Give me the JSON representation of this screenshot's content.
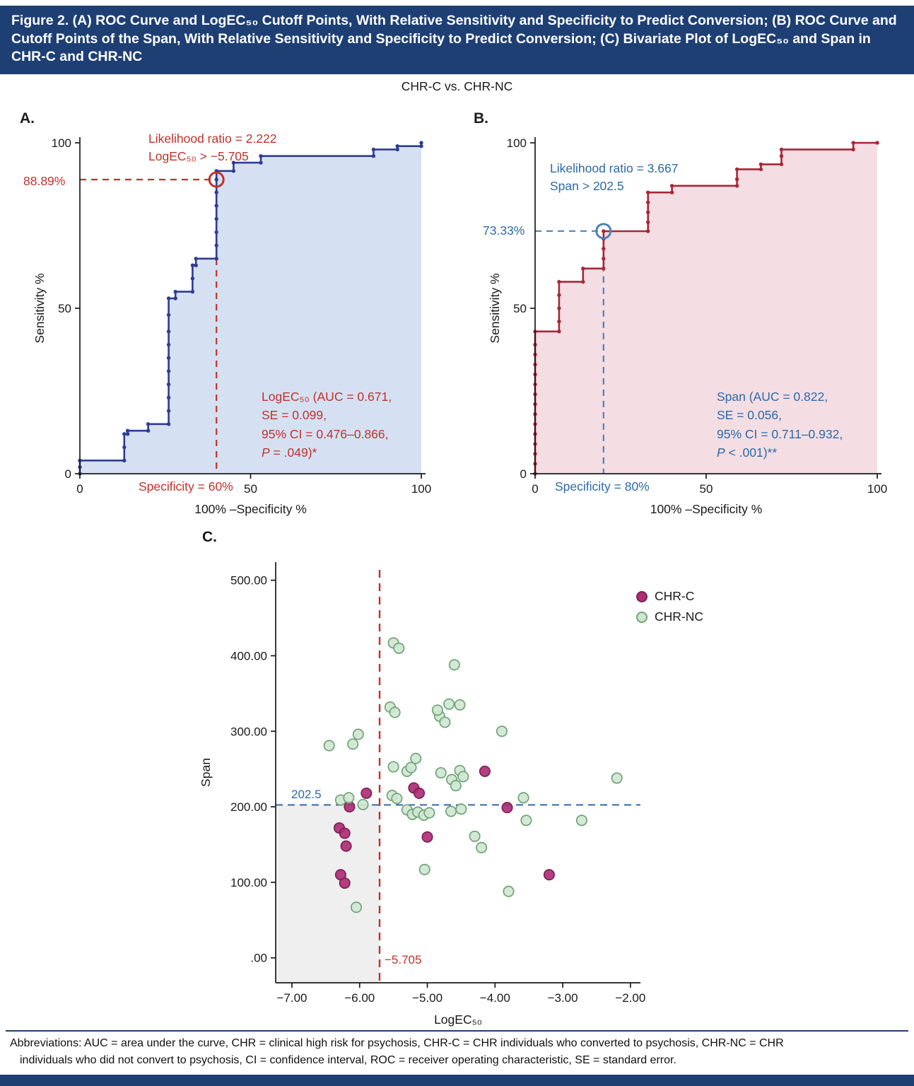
{
  "colors": {
    "header_bar": "#1e3f74",
    "red": "#c2312b",
    "blue": "#2b6aa8"
  },
  "header": {
    "title": "Figure 2. (A) ROC Curve and LogEC₅₀ Cutoff Points, With Relative Sensitivity and Specificity to Predict Conversion; (B) ROC Curve and Cutoff Points of the Span, With Relative Sensitivity and Specificity to Predict Conversion; (C) Bivariate Plot of LogEC₅₀ and Span in CHR-C and CHR-NC"
  },
  "subtitle": "CHR-C vs. CHR-NC",
  "panels": {
    "a": {
      "label": "A.",
      "annotations": {
        "likelihood": [
          "Likelihood ratio = 2.222",
          "LogEC₅₀ > −5.705"
        ],
        "sensitivity_label": "88.89%",
        "specificity_label": "Specificity = 60%",
        "stats": [
          "LogEC₅₀ (AUC = 0.671,",
          "SE = 0.099,",
          "95% CI = 0.476–0.866,",
          "P = .049)*"
        ]
      }
    },
    "b": {
      "label": "B.",
      "annotations": {
        "likelihood": [
          "Likelihood ratio = 3.667",
          "Span > 202.5"
        ],
        "sensitivity_label": "73.33%",
        "specificity_label": "Specificity = 80%",
        "stats": [
          "Span (AUC = 0.822,",
          "SE = 0.056,",
          "95% CI = 0.711–0.932,",
          "P < .001)**"
        ]
      }
    },
    "c": {
      "label": "C."
    }
  },
  "footer": {
    "abbreviations": [
      "Abbreviations: AUC = area under the curve, CHR = clinical high risk for psychosis, CHR-C = CHR individuals who converted to psychosis, CHR-NC = CHR",
      "individuals who did not convert to psychosis, CI = confidence interval, ROC = receiver operating characteristic, SE = standard error."
    ]
  },
  "chart_data": [
    {
      "id": "rocA",
      "type": "line",
      "subtype": "roc-step",
      "title": "CHR-C vs. CHR-NC",
      "xlabel": "100% –Specificity %",
      "ylabel": "Sensitivity %",
      "xlim": [
        0,
        100
      ],
      "ylim": [
        0,
        100
      ],
      "xticks": [
        0,
        50,
        100
      ],
      "yticks": [
        0,
        50,
        100
      ],
      "curve_color": "#2d3c94",
      "fill_color": "#d5e1f2",
      "cutoff": {
        "x": 40,
        "sensitivity": 88.89,
        "specificity": 60,
        "likelihood_ratio": 2.222,
        "threshold": "LogEC₅₀ > −5.705",
        "circle_color": "#c2312b",
        "dash_color": "#c2312b"
      },
      "auc": 0.671,
      "se": 0.099,
      "ci": "0.476–0.866",
      "p": ".049",
      "points": [
        [
          0,
          0
        ],
        [
          0,
          2
        ],
        [
          0,
          4
        ],
        [
          13,
          4
        ],
        [
          13,
          8
        ],
        [
          13,
          12
        ],
        [
          14,
          12
        ],
        [
          14,
          13
        ],
        [
          20,
          13
        ],
        [
          20,
          15
        ],
        [
          26,
          15
        ],
        [
          26,
          19
        ],
        [
          26,
          23
        ],
        [
          26,
          27
        ],
        [
          26,
          31
        ],
        [
          26,
          35
        ],
        [
          26,
          39
        ],
        [
          26,
          43
        ],
        [
          26,
          48
        ],
        [
          26,
          53
        ],
        [
          28,
          53
        ],
        [
          28,
          55
        ],
        [
          33,
          55
        ],
        [
          33,
          59
        ],
        [
          33,
          63
        ],
        [
          34,
          63
        ],
        [
          34,
          65
        ],
        [
          40,
          65
        ],
        [
          40,
          69
        ],
        [
          40,
          73
        ],
        [
          40,
          77
        ],
        [
          40,
          81
        ],
        [
          40,
          85
        ],
        [
          40,
          88.9
        ],
        [
          40,
          91.5
        ],
        [
          45,
          91.5
        ],
        [
          45,
          94
        ],
        [
          53,
          94
        ],
        [
          53,
          96
        ],
        [
          86,
          96
        ],
        [
          86,
          98
        ],
        [
          93,
          98
        ],
        [
          93,
          99
        ],
        [
          100,
          99
        ],
        [
          100,
          100
        ]
      ]
    },
    {
      "id": "rocB",
      "type": "line",
      "subtype": "roc-step",
      "title": "CHR-C vs. CHR-NC",
      "xlabel": "100% –Specificity %",
      "ylabel": "Sensitivity %",
      "xlim": [
        0,
        100
      ],
      "ylim": [
        0,
        100
      ],
      "xticks": [
        0,
        50,
        100
      ],
      "yticks": [
        0,
        50,
        100
      ],
      "curve_color": "#a72638",
      "fill_color": "#f4dde3",
      "cutoff": {
        "x": 20,
        "sensitivity": 73.33,
        "specificity": 80,
        "likelihood_ratio": 3.667,
        "threshold": "Span > 202.5",
        "circle_color": "#4d83b8",
        "dash_color": "#4d83b8"
      },
      "auc": 0.822,
      "se": 0.056,
      "ci": "0.711–0.932",
      "p": "<.001",
      "points": [
        [
          0,
          0
        ],
        [
          0,
          3
        ],
        [
          0,
          6
        ],
        [
          0,
          9
        ],
        [
          0,
          12
        ],
        [
          0,
          15
        ],
        [
          0,
          18
        ],
        [
          0,
          21
        ],
        [
          0,
          24
        ],
        [
          0,
          27
        ],
        [
          0,
          30
        ],
        [
          0,
          33
        ],
        [
          0,
          36
        ],
        [
          0,
          39
        ],
        [
          0,
          43
        ],
        [
          7,
          43
        ],
        [
          7,
          46
        ],
        [
          7,
          50
        ],
        [
          7,
          54
        ],
        [
          7,
          58
        ],
        [
          14,
          58
        ],
        [
          14,
          62
        ],
        [
          20,
          62
        ],
        [
          20,
          65
        ],
        [
          20,
          68
        ],
        [
          20,
          71
        ],
        [
          20,
          73.3
        ],
        [
          33,
          73.3
        ],
        [
          33,
          76
        ],
        [
          33,
          79
        ],
        [
          33,
          82
        ],
        [
          33,
          85
        ],
        [
          40,
          85
        ],
        [
          40,
          87
        ],
        [
          59,
          87
        ],
        [
          59,
          89
        ],
        [
          59,
          92
        ],
        [
          66,
          92
        ],
        [
          66,
          93.5
        ],
        [
          72,
          93.5
        ],
        [
          72,
          96
        ],
        [
          72,
          98
        ],
        [
          93,
          98
        ],
        [
          93,
          100
        ],
        [
          100,
          100
        ]
      ]
    },
    {
      "id": "scatterC",
      "type": "scatter",
      "title": "Bivariate plot of LogEC₅₀ and Span in CHR-C and CHR-NC",
      "xlabel": "LogEC₅₀",
      "ylabel": "Span",
      "xlim": [
        -7.24,
        -1.8
      ],
      "ylim": [
        -33,
        524
      ],
      "xticks": [
        -7,
        -6,
        -5,
        -4,
        -3,
        -2
      ],
      "xtick_labels": [
        "−7.00",
        "−6.00",
        "−5.00",
        "−4.00",
        "−3.00",
        "−2.00"
      ],
      "yticks": [
        0,
        100,
        200,
        300,
        400,
        500
      ],
      "ytick_labels": [
        ".00",
        "100.00",
        "200.00",
        "300.00",
        "400.00",
        "500.00"
      ],
      "legend_position": "top-right",
      "hline": {
        "y": 202.5,
        "label": "202.5",
        "color": "#3f6fa8"
      },
      "vline": {
        "x": -5.705,
        "label": "−5.705",
        "color": "#c2312b"
      },
      "shaded_region": {
        "x": [
          -7.24,
          -5.705
        ],
        "y": [
          -33,
          202.5
        ],
        "color": "#efefef"
      },
      "series": [
        {
          "name": "CHR-C",
          "fill": "#ad2e75",
          "stroke": "#7e2055",
          "points": [
            [
              -5.9,
              218
            ],
            [
              -6.15,
              200
            ],
            [
              -6.3,
              172
            ],
            [
              -6.22,
              165
            ],
            [
              -6.2,
              148
            ],
            [
              -6.28,
              110
            ],
            [
              -6.22,
              99
            ],
            [
              -5.2,
              225
            ],
            [
              -5.12,
              218
            ],
            [
              -5.0,
              160
            ],
            [
              -4.15,
              247
            ],
            [
              -3.82,
              199
            ],
            [
              -3.2,
              110
            ]
          ]
        },
        {
          "name": "CHR-NC",
          "fill": "#cfe6d1",
          "stroke": "#6fa378",
          "points": [
            [
              -6.45,
              281
            ],
            [
              -6.1,
              283
            ],
            [
              -6.02,
              296
            ],
            [
              -6.28,
              209
            ],
            [
              -6.16,
              212
            ],
            [
              -5.95,
              203
            ],
            [
              -6.05,
              67
            ],
            [
              -5.5,
              417
            ],
            [
              -5.42,
              410
            ],
            [
              -5.55,
              332
            ],
            [
              -5.48,
              325
            ],
            [
              -5.5,
              253
            ],
            [
              -5.3,
              247
            ],
            [
              -5.24,
              252
            ],
            [
              -5.17,
              264
            ],
            [
              -5.52,
              215
            ],
            [
              -5.45,
              211
            ],
            [
              -5.3,
              196
            ],
            [
              -5.22,
              190
            ],
            [
              -5.14,
              193
            ],
            [
              -5.05,
              189
            ],
            [
              -4.97,
              192
            ],
            [
              -5.04,
              117
            ],
            [
              -4.82,
              320
            ],
            [
              -4.74,
              312
            ],
            [
              -4.85,
              328
            ],
            [
              -4.6,
              388
            ],
            [
              -4.68,
              336
            ],
            [
              -4.52,
              335
            ],
            [
              -4.8,
              245
            ],
            [
              -4.64,
              236
            ],
            [
              -4.58,
              228
            ],
            [
              -4.52,
              248
            ],
            [
              -4.47,
              240
            ],
            [
              -4.65,
              194
            ],
            [
              -4.5,
              197
            ],
            [
              -4.3,
              161
            ],
            [
              -4.2,
              146
            ],
            [
              -3.9,
              300
            ],
            [
              -3.58,
              212
            ],
            [
              -3.54,
              182
            ],
            [
              -3.8,
              88
            ],
            [
              -2.72,
              182
            ],
            [
              -2.2,
              238
            ]
          ]
        }
      ]
    }
  ]
}
